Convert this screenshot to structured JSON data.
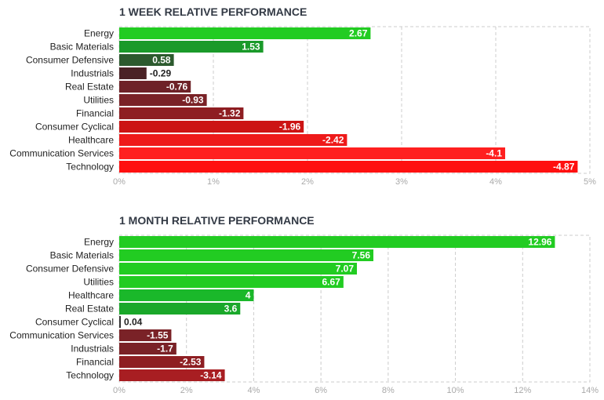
{
  "chart_data": [
    {
      "type": "bar",
      "orientation": "horizontal",
      "title": "1 WEEK RELATIVE PERFORMANCE",
      "categories": [
        "Energy",
        "Basic Materials",
        "Consumer Defensive",
        "Industrials",
        "Real Estate",
        "Utilities",
        "Financial",
        "Consumer Cyclical",
        "Healthcare",
        "Communication Services",
        "Technology"
      ],
      "values": [
        2.67,
        1.53,
        0.58,
        -0.29,
        -0.76,
        -0.93,
        -1.32,
        -1.96,
        -2.42,
        -4.1,
        -4.87
      ],
      "value_labels": [
        "2.67",
        "1.53",
        "0.58",
        "-0.29",
        "-0.76",
        "-0.93",
        "-1.32",
        "-1.96",
        "-2.42",
        "-4.1",
        "-4.87"
      ],
      "colors": [
        "#22cc22",
        "#1a9a2a",
        "#2c5a2e",
        "#4a2226",
        "#6e2228",
        "#7a2227",
        "#8e1e22",
        "#cc1414",
        "#ee1a1a",
        "#ff2020",
        "#ff1010"
      ],
      "xlim": [
        0,
        5
      ],
      "xticks": [
        "0%",
        "1%",
        "2%",
        "3%",
        "4%",
        "5%"
      ],
      "grid": true,
      "legend": "none"
    },
    {
      "type": "bar",
      "orientation": "horizontal",
      "title": "1 MONTH RELATIVE PERFORMANCE",
      "categories": [
        "Energy",
        "Basic Materials",
        "Consumer Defensive",
        "Utilities",
        "Healthcare",
        "Real Estate",
        "Consumer Cyclical",
        "Communication Services",
        "Industrials",
        "Financial",
        "Technology"
      ],
      "values": [
        12.96,
        7.56,
        7.07,
        6.67,
        4,
        3.6,
        0.04,
        -1.55,
        -1.7,
        -2.53,
        -3.14
      ],
      "value_labels": [
        "12.96",
        "7.56",
        "7.07",
        "6.67",
        "4",
        "3.6",
        "0.04",
        "-1.55",
        "-1.7",
        "-2.53",
        "-3.14"
      ],
      "colors": [
        "#22cc22",
        "#22cc22",
        "#22cc22",
        "#22cc22",
        "#1ab82a",
        "#1aa82a",
        "#333333",
        "#7a2227",
        "#7a2227",
        "#8e1e22",
        "#a81e22"
      ],
      "xlim": [
        0,
        14
      ],
      "xticks": [
        "0%",
        "2%",
        "4%",
        "6%",
        "8%",
        "10%",
        "12%",
        "14%"
      ],
      "grid": true,
      "legend": "none"
    }
  ]
}
